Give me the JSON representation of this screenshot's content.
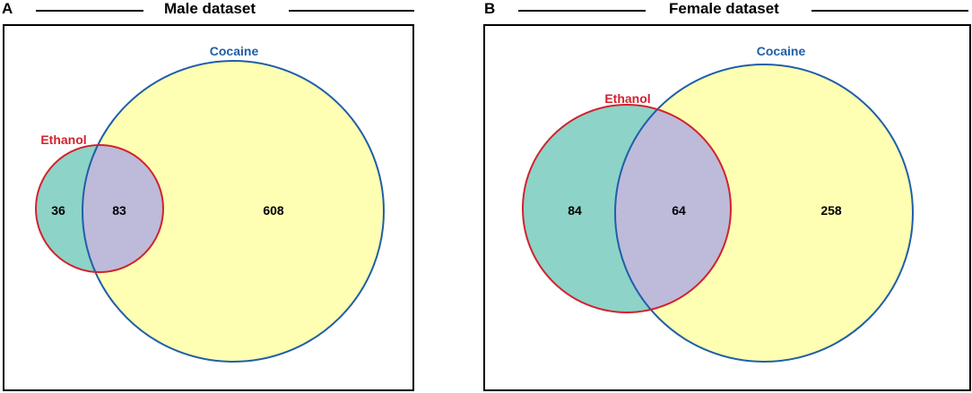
{
  "panels": [
    {
      "letter": "A",
      "title": "Male dataset",
      "sets": [
        {
          "name": "Ethanol",
          "color": "#d2222d",
          "fill": "#8dd3c7"
        },
        {
          "name": "Cocaine",
          "color": "#1f5fa8",
          "fill": "#ffffb3"
        }
      ],
      "counts": {
        "ethanol_only": "36",
        "overlap": "83",
        "cocaine_only": "608"
      },
      "overlap_fill": "#bebada"
    },
    {
      "letter": "B",
      "title": "Female dataset",
      "sets": [
        {
          "name": "Ethanol",
          "color": "#d2222d",
          "fill": "#8dd3c7"
        },
        {
          "name": "Cocaine",
          "color": "#1f5fa8",
          "fill": "#ffffb3"
        }
      ],
      "counts": {
        "ethanol_only": "84",
        "overlap": "64",
        "cocaine_only": "258"
      },
      "overlap_fill": "#bebada"
    }
  ]
}
